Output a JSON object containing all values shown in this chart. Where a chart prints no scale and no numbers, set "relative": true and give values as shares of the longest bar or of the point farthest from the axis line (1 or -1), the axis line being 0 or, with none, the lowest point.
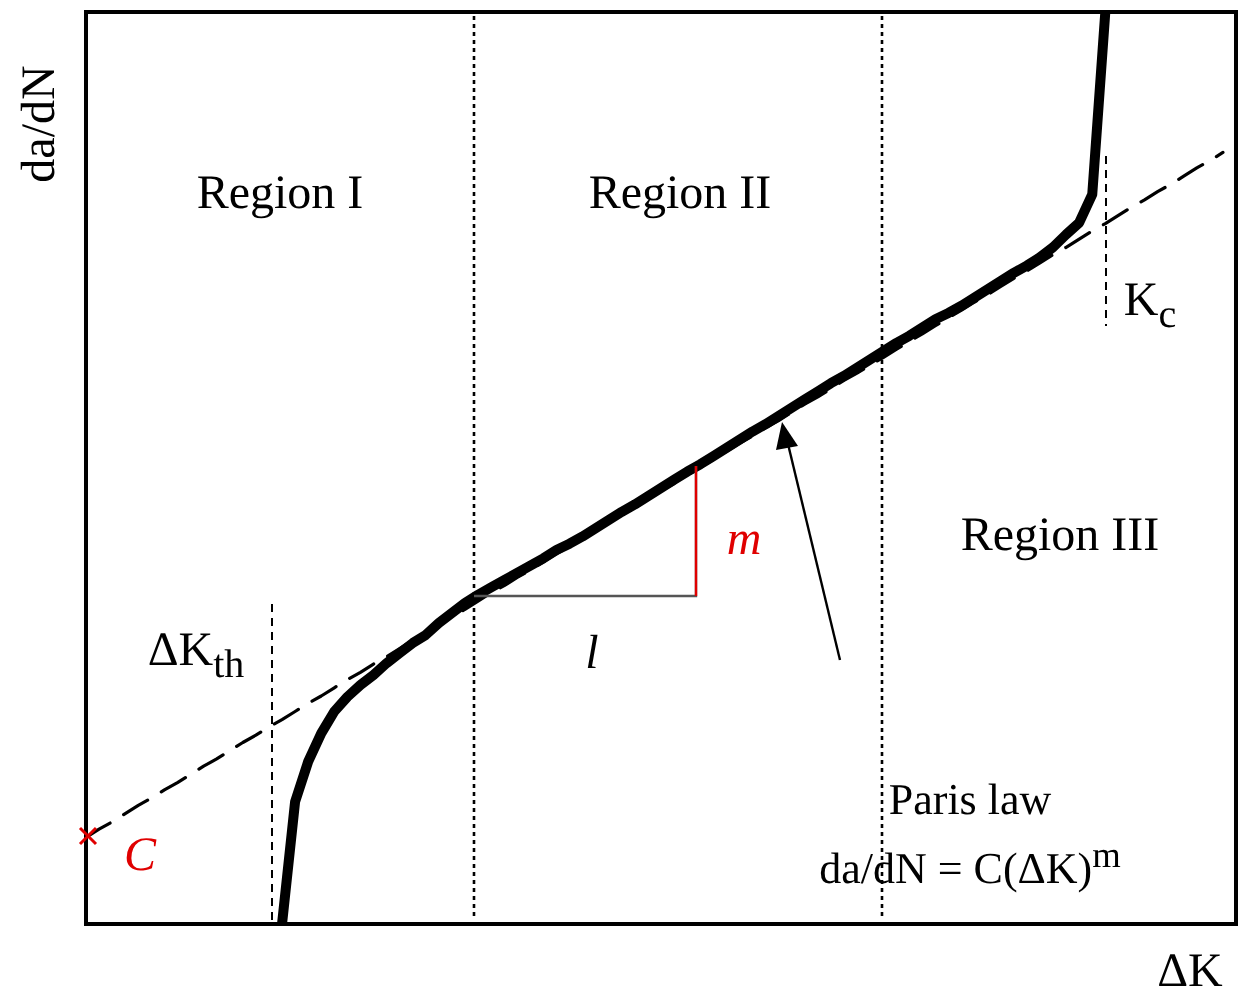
{
  "chart_data": {
    "type": "line",
    "relative": true,
    "marker": "none",
    "xlabel": "ΔK",
    "ylabel": "da/dN",
    "categories": [
      null,
      null,
      null,
      null,
      null,
      null,
      null,
      null,
      null,
      null,
      null,
      null,
      null,
      null,
      null,
      null,
      null,
      null,
      null,
      null,
      null,
      null,
      null,
      null,
      null,
      null,
      null,
      null,
      null,
      null,
      null,
      null,
      null,
      null,
      null,
      null,
      null,
      null,
      null,
      null,
      null,
      null,
      null,
      null,
      null,
      null,
      null,
      null,
      null,
      null,
      null,
      null,
      null,
      null,
      null,
      null,
      null,
      null,
      null,
      null,
      null,
      null,
      null,
      null,
      null,
      null,
      null,
      null,
      null,
      null,
      null,
      null,
      null,
      null,
      null,
      null,
      null,
      null,
      null,
      null,
      null,
      null,
      null,
      null,
      null,
      null,
      null,
      null,
      null
    ],
    "series": [
      {
        "color": "#000000",
        "line_style": "dashed",
        "values": [
          0.095,
          0.104,
          0.112,
          0.121,
          0.13,
          0.138,
          0.147,
          0.155,
          0.164,
          0.173,
          0.181,
          0.19,
          0.199,
          0.207,
          0.216,
          0.224,
          0.233,
          0.242,
          0.25,
          0.259,
          0.268,
          0.276,
          0.285,
          0.293,
          0.302,
          0.311,
          0.319,
          0.328,
          0.337,
          0.345,
          0.354,
          0.363,
          0.371,
          0.38,
          0.388,
          0.397,
          0.406,
          0.414,
          0.423,
          0.432,
          0.44,
          0.449,
          0.457,
          0.466,
          0.475,
          0.483,
          0.492,
          0.501,
          0.509,
          0.518,
          0.527,
          0.535,
          0.544,
          0.552,
          0.561,
          0.57,
          0.578,
          0.587,
          0.596,
          0.604,
          0.613,
          0.621,
          0.63,
          0.639,
          0.647,
          0.656,
          0.665,
          0.673,
          0.682,
          0.69,
          0.699,
          0.708,
          0.716,
          0.725,
          0.734,
          0.742,
          0.751,
          0.76,
          0.768,
          0.777,
          0.786,
          0.794,
          0.803,
          0.811,
          0.82,
          0.829,
          0.837,
          0.846,
          null
        ]
      },
      {
        "color": "#000000",
        "line_style": "solid",
        "values": [
          null,
          null,
          null,
          null,
          null,
          null,
          null,
          null,
          null,
          null,
          null,
          null,
          null,
          null,
          null,
          0,
          0.134,
          0.178,
          0.209,
          0.233,
          0.249,
          0.262,
          0.273,
          0.286,
          0.297,
          0.308,
          0.317,
          0.33,
          0.341,
          0.352,
          0.361,
          0.369,
          0.377,
          0.385,
          0.393,
          0.401,
          0.41,
          0.417,
          0.425,
          0.434,
          0.443,
          0.452,
          0.46,
          0.469,
          0.478,
          0.487,
          0.496,
          0.504,
          0.513,
          0.522,
          0.531,
          0.54,
          0.548,
          0.557,
          0.566,
          0.575,
          0.584,
          0.593,
          0.601,
          0.61,
          0.619,
          0.628,
          0.637,
          0.645,
          0.654,
          0.663,
          0.67,
          0.678,
          0.687,
          0.696,
          0.705,
          0.714,
          0.722,
          0.731,
          0.742,
          0.756,
          0.769,
          0.8,
          1.0,
          null,
          null,
          null,
          null,
          null,
          null,
          null,
          null,
          null,
          null
        ]
      }
    ],
    "annotations": [
      "Region I",
      "Region II",
      "Region III",
      "ΔK$_{th}$",
      "K$_{c}$",
      "l",
      "m",
      "C",
      "Paris law",
      "da/dN = C(ΔK)$^{m}$"
    ]
  }
}
